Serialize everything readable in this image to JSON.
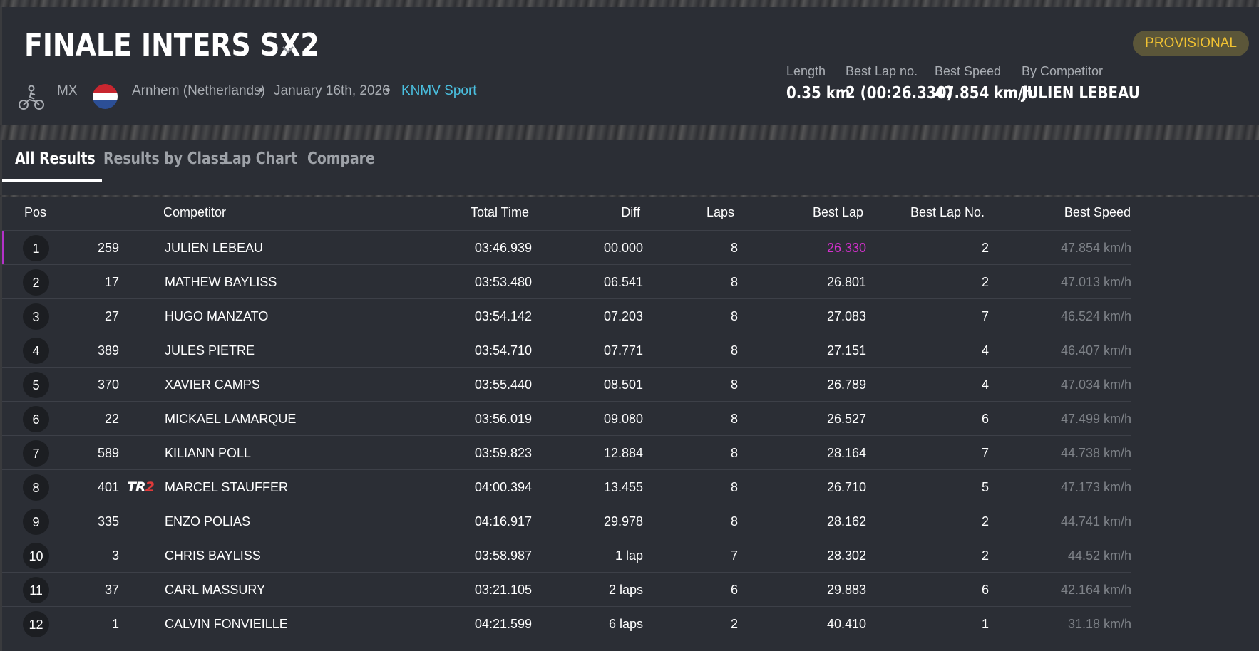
{
  "race": {
    "title": "FINALE INTERS SX2",
    "status_badge": "PROVISIONAL",
    "discipline": "MX",
    "location": "Arnhem (Netherlands)",
    "date": "January 16th, 2026",
    "organizer": "KNMV Sport",
    "separator": "•"
  },
  "stats": {
    "length_label": "Length",
    "length_value": "0.35 km",
    "best_lap_no_label": "Best Lap no.",
    "best_lap_no_value": "2 (00:26.330)",
    "best_speed_label": "Best Speed",
    "best_speed_value": "47.854 km/h",
    "by_competitor_label": "By Competitor",
    "by_competitor_value": "JULIEN LEBEAU"
  },
  "tabs": [
    {
      "label": "All Results",
      "active": true
    },
    {
      "label": "Results by Class",
      "active": false
    },
    {
      "label": "Lap Chart",
      "active": false
    },
    {
      "label": "Compare",
      "active": false
    }
  ],
  "columns": {
    "pos": "Pos",
    "competitor": "Competitor",
    "total_time": "Total Time",
    "diff": "Diff",
    "laps": "Laps",
    "best_lap": "Best Lap",
    "best_lap_no": "Best Lap No.",
    "best_speed": "Best Speed"
  },
  "rows": [
    {
      "pos": "1",
      "num": "259",
      "team": "",
      "name": "JULIEN LEBEAU",
      "total": "03:46.939",
      "diff": "00.000",
      "laps": "8",
      "best": "26.330",
      "best_no": "2",
      "speed": "47.854 km/h"
    },
    {
      "pos": "2",
      "num": "17",
      "team": "",
      "name": "MATHEW BAYLISS",
      "total": "03:53.480",
      "diff": "06.541",
      "laps": "8",
      "best": "26.801",
      "best_no": "2",
      "speed": "47.013 km/h"
    },
    {
      "pos": "3",
      "num": "27",
      "team": "",
      "name": "HUGO MANZATO",
      "total": "03:54.142",
      "diff": "07.203",
      "laps": "8",
      "best": "27.083",
      "best_no": "7",
      "speed": "46.524 km/h"
    },
    {
      "pos": "4",
      "num": "389",
      "team": "",
      "name": "JULES PIETRE",
      "total": "03:54.710",
      "diff": "07.771",
      "laps": "8",
      "best": "27.151",
      "best_no": "4",
      "speed": "46.407 km/h"
    },
    {
      "pos": "5",
      "num": "370",
      "team": "",
      "name": "XAVIER CAMPS",
      "total": "03:55.440",
      "diff": "08.501",
      "laps": "8",
      "best": "26.789",
      "best_no": "4",
      "speed": "47.034 km/h"
    },
    {
      "pos": "6",
      "num": "22",
      "team": "",
      "name": "MICKAEL LAMARQUE",
      "total": "03:56.019",
      "diff": "09.080",
      "laps": "8",
      "best": "26.527",
      "best_no": "6",
      "speed": "47.499 km/h"
    },
    {
      "pos": "7",
      "num": "589",
      "team": "",
      "name": "KILIANN POLL",
      "total": "03:59.823",
      "diff": "12.884",
      "laps": "8",
      "best": "28.164",
      "best_no": "7",
      "speed": "44.738 km/h"
    },
    {
      "pos": "8",
      "num": "401",
      "team": "TR2",
      "name": "MARCEL STAUFFER",
      "total": "04:00.394",
      "diff": "13.455",
      "laps": "8",
      "best": "26.710",
      "best_no": "5",
      "speed": "47.173 km/h"
    },
    {
      "pos": "9",
      "num": "335",
      "team": "",
      "name": "ENZO POLIAS",
      "total": "04:16.917",
      "diff": "29.978",
      "laps": "8",
      "best": "28.162",
      "best_no": "2",
      "speed": "44.741 km/h"
    },
    {
      "pos": "10",
      "num": "3",
      "team": "",
      "name": "CHRIS BAYLISS",
      "total": "03:58.987",
      "diff": "1 lap",
      "laps": "7",
      "best": "28.302",
      "best_no": "2",
      "speed": "44.52 km/h"
    },
    {
      "pos": "11",
      "num": "37",
      "team": "",
      "name": "CARL MASSURY",
      "total": "03:21.105",
      "diff": "2 laps",
      "laps": "6",
      "best": "29.883",
      "best_no": "6",
      "speed": "42.164 km/h"
    },
    {
      "pos": "12",
      "num": "1",
      "team": "",
      "name": "CALVIN FONVIEILLE",
      "total": "04:21.599",
      "diff": "6 laps",
      "laps": "2",
      "best": "40.410",
      "best_no": "1",
      "speed": "31.18 km/h"
    }
  ],
  "colors": {
    "panel": "#2b2e35",
    "link": "#4ac0e0",
    "fastest_lap": "#d630cf",
    "badge_text": "#f1c232",
    "badge_bg": "#5b5639"
  },
  "icons": {
    "discipline": "motocross-rider-icon",
    "flag": "netherlands-flag-icon",
    "title_menu": "chevron-down-icon"
  }
}
